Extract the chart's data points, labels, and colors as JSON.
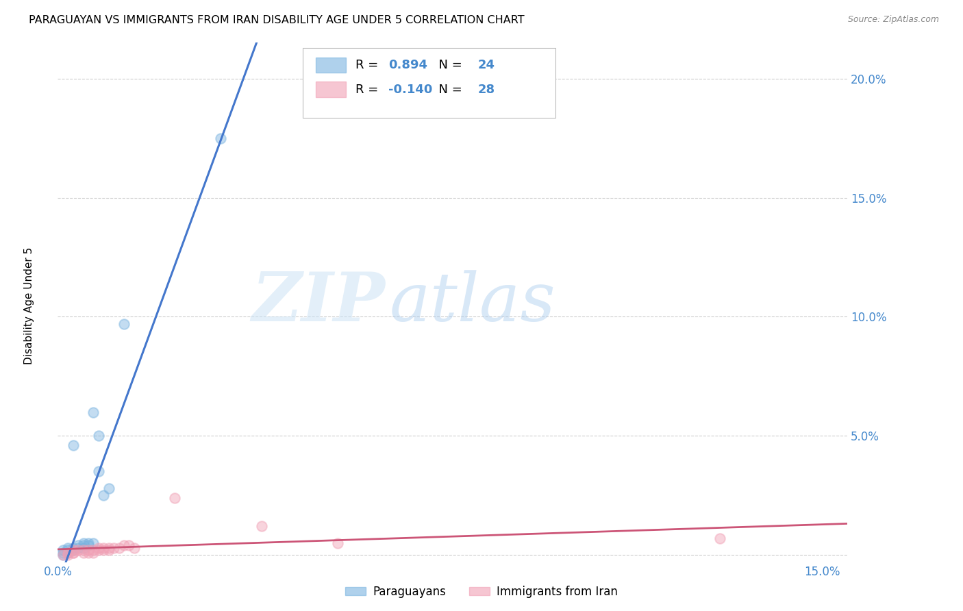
{
  "title": "PARAGUAYAN VS IMMIGRANTS FROM IRAN DISABILITY AGE UNDER 5 CORRELATION CHART",
  "source": "Source: ZipAtlas.com",
  "ylabel": "Disability Age Under 5",
  "xlim": [
    0.0,
    0.155
  ],
  "ylim": [
    -0.003,
    0.215
  ],
  "background_color": "#ffffff",
  "grid_color": "#c8c8c8",
  "watermark_zip": "ZIP",
  "watermark_atlas": "atlas",
  "par_x": [
    0.001,
    0.001,
    0.001,
    0.002,
    0.002,
    0.002,
    0.003,
    0.003,
    0.003,
    0.004,
    0.004,
    0.005,
    0.005,
    0.005,
    0.006,
    0.006,
    0.007,
    0.007,
    0.008,
    0.008,
    0.009,
    0.01,
    0.013,
    0.032
  ],
  "par_y": [
    0.0,
    0.001,
    0.002,
    0.001,
    0.002,
    0.003,
    0.002,
    0.003,
    0.046,
    0.003,
    0.004,
    0.003,
    0.004,
    0.005,
    0.004,
    0.005,
    0.005,
    0.06,
    0.035,
    0.05,
    0.025,
    0.028,
    0.097,
    0.175
  ],
  "iran_x": [
    0.001,
    0.002,
    0.002,
    0.003,
    0.003,
    0.003,
    0.004,
    0.005,
    0.005,
    0.006,
    0.006,
    0.007,
    0.007,
    0.008,
    0.008,
    0.009,
    0.009,
    0.01,
    0.01,
    0.011,
    0.012,
    0.013,
    0.014,
    0.015,
    0.023,
    0.04,
    0.055,
    0.13
  ],
  "iran_y": [
    0.0,
    0.0,
    0.001,
    0.001,
    0.001,
    0.002,
    0.002,
    0.001,
    0.002,
    0.001,
    0.002,
    0.001,
    0.002,
    0.002,
    0.003,
    0.002,
    0.003,
    0.002,
    0.003,
    0.003,
    0.003,
    0.004,
    0.004,
    0.003,
    0.024,
    0.012,
    0.005,
    0.007
  ],
  "par_color": "#7ab3e0",
  "par_line_color": "#4477cc",
  "iran_color": "#f0a0b5",
  "iran_line_color": "#cc5577",
  "par_R": "0.894",
  "par_N": "24",
  "iran_R": "-0.140",
  "iran_N": "28",
  "marker_size": 110,
  "marker_alpha": 0.45,
  "title_fontsize": 11.5,
  "tick_color": "#4488cc",
  "tick_fontsize": 12,
  "label_fontsize": 11,
  "legend_fontsize": 13
}
